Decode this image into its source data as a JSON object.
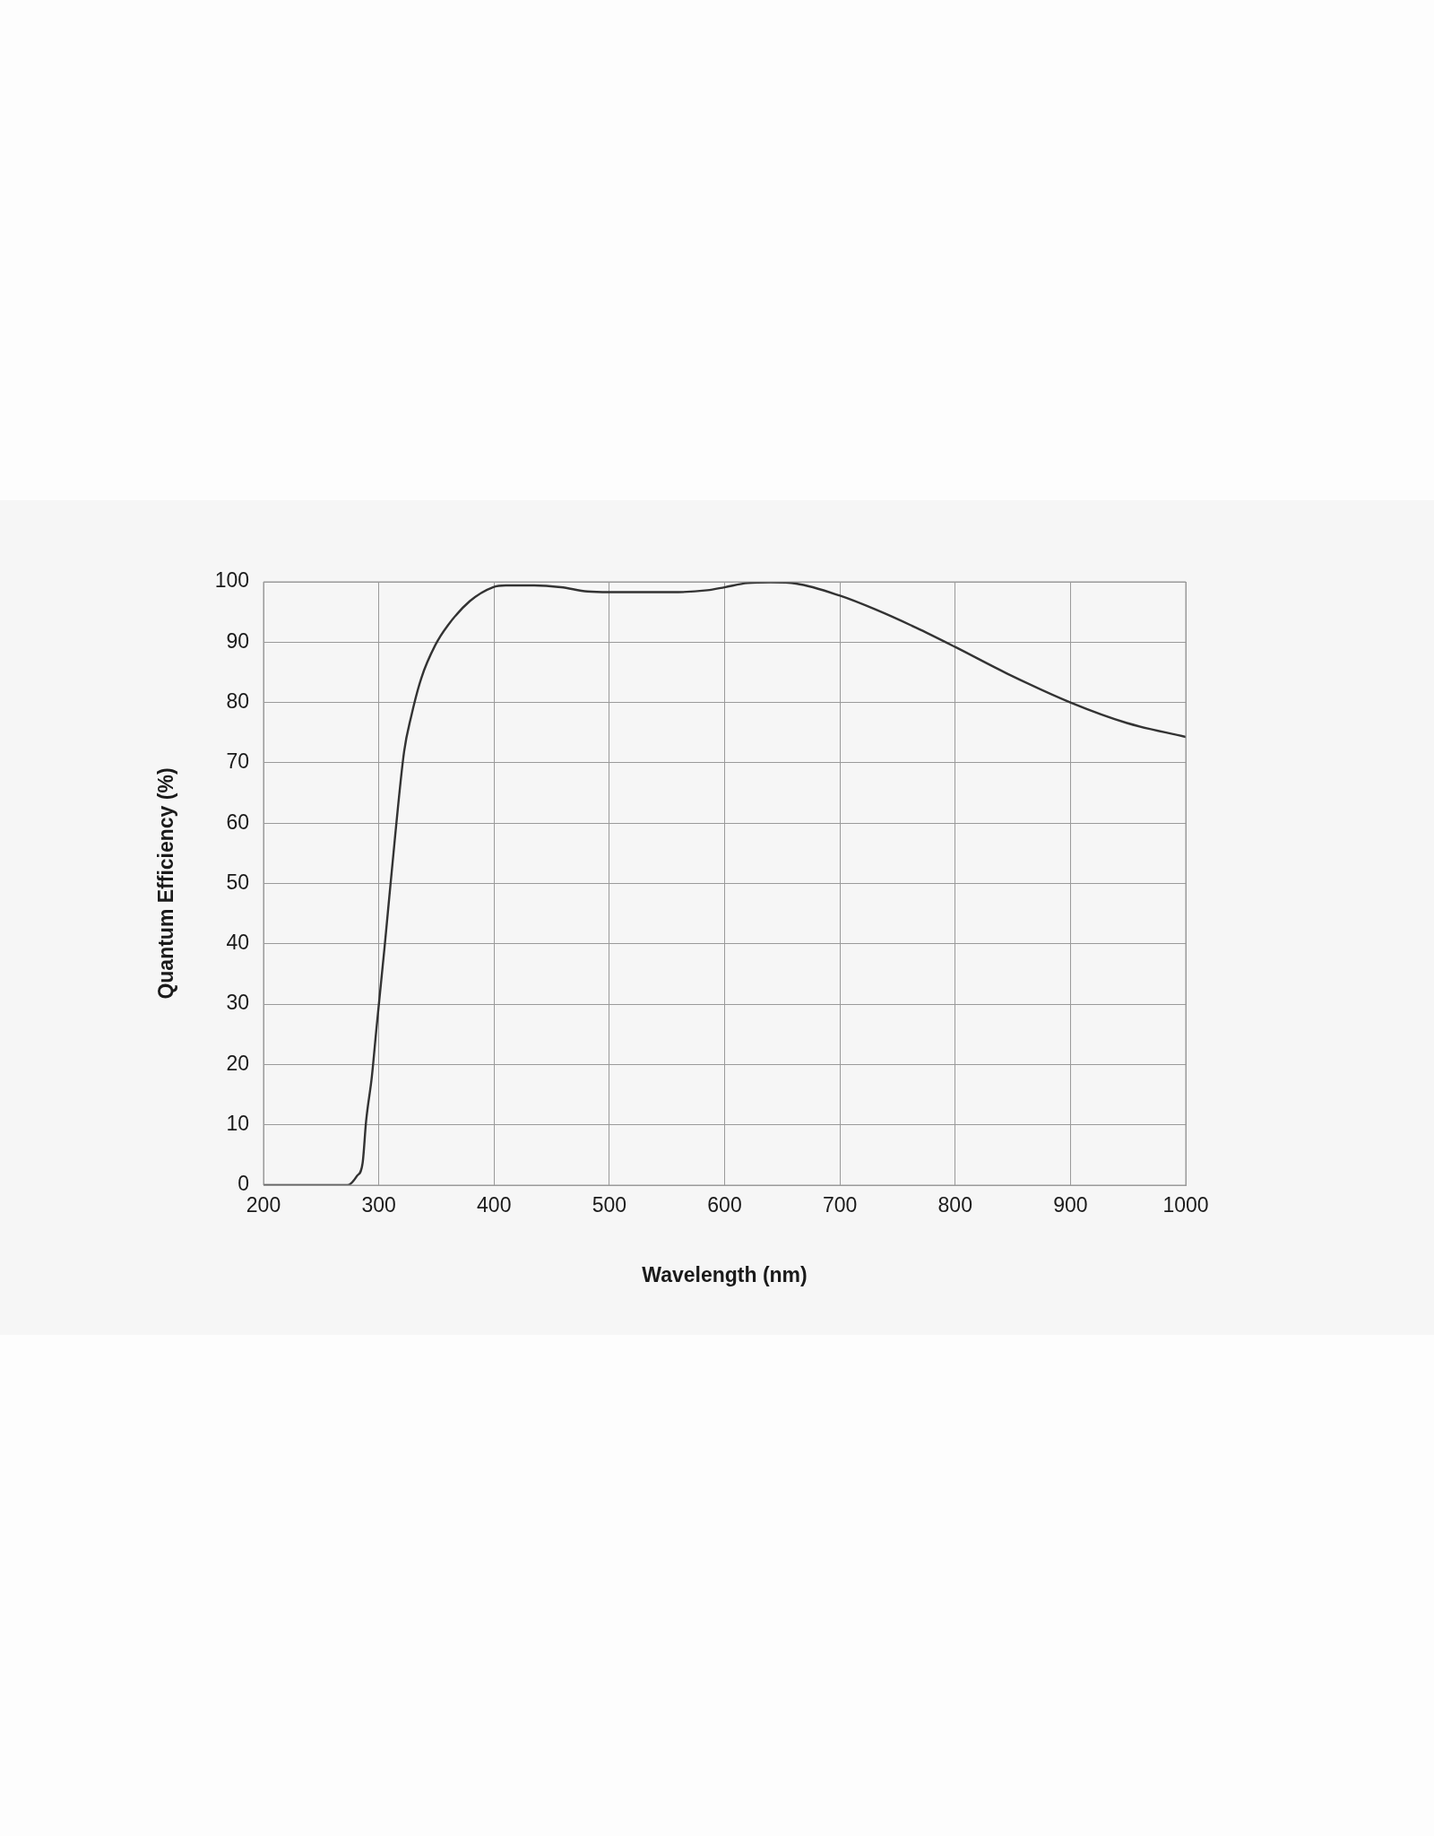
{
  "chart_data": {
    "type": "line",
    "xlabel": "Wavelength (nm)",
    "ylabel": "Quantum Efficiency (%)",
    "x": [
      200,
      273,
      281,
      286,
      289,
      294,
      298,
      305,
      314,
      322,
      328,
      337,
      349,
      360,
      379,
      399,
      410,
      435,
      458,
      481,
      500,
      530,
      560,
      585,
      600,
      620,
      640,
      662,
      700,
      731,
      766,
      800,
      845,
      900,
      949,
      1000
    ],
    "series": [
      {
        "color": "#333333",
        "values": [
          0,
          0,
          1.5,
          3.7,
          10.6,
          18,
          26,
          39.4,
          57.5,
          71.9,
          77.6,
          84.1,
          89.5,
          92.8,
          96.8,
          99.1,
          99.4,
          99.4,
          99.1,
          98.4,
          98.3,
          98.3,
          98.3,
          98.6,
          99.1,
          99.8,
          99.9,
          99.7,
          97.7,
          95.4,
          92.4,
          89.2,
          84.8,
          80,
          76.6,
          74.3
        ]
      }
    ],
    "xlim": [
      200,
      1000
    ],
    "xticks": [
      200,
      300,
      400,
      500,
      600,
      700,
      800,
      900,
      1000
    ],
    "ylim": [
      0,
      100
    ],
    "yticks": [
      0,
      10,
      20,
      30,
      40,
      50,
      60,
      70,
      80,
      90,
      100
    ],
    "grid": true,
    "marker": "none",
    "line_style": "solid"
  }
}
